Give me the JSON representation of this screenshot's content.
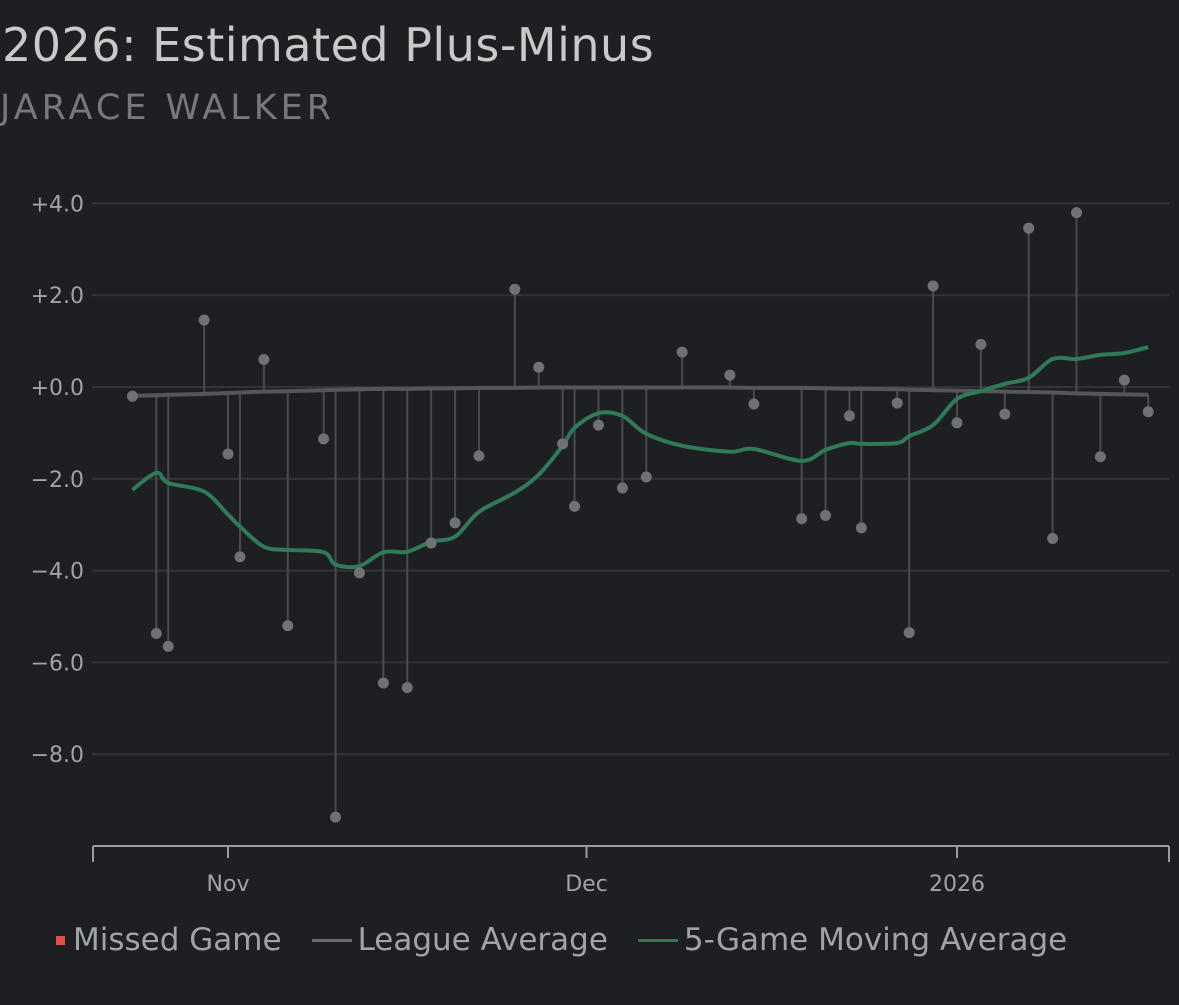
{
  "title": "2026: Estimated Plus-Minus",
  "subtitle": "JARACE WALKER",
  "colors": {
    "background": "#1e1f22",
    "points": "#707175",
    "league_average": "#55565a",
    "moving_average": "#2e7a59",
    "missed_game": "#e0514a",
    "grid": "#333438"
  },
  "legend": [
    {
      "label": "Missed Game",
      "kind": "square",
      "color": "#e0514a"
    },
    {
      "label": "League Average",
      "kind": "line",
      "color": "#6a6b6f"
    },
    {
      "label": "5-Game Moving Average",
      "kind": "line",
      "color": "#2e7a59"
    }
  ],
  "chart_data": {
    "type": "scatter",
    "title": "2026: Estimated Plus-Minus",
    "subtitle": "JARACE WALKER",
    "xlabel": "",
    "ylabel": "",
    "ylim": [
      -10,
      4.3
    ],
    "yticks": [
      4,
      2,
      0,
      -2,
      -4,
      -6,
      -8
    ],
    "ytick_labels": [
      "+4.0",
      "+2.0",
      "+0.0",
      "−2.0",
      "−4.0",
      "−6.0",
      "−8.0"
    ],
    "xticks": [
      {
        "date": "2025-11-01",
        "label": "Nov"
      },
      {
        "date": "2025-12-01",
        "label": "Dec"
      },
      {
        "date": "2026-01-01",
        "label": "2026"
      }
    ],
    "grid": true,
    "legend_position": "bottom",
    "dates": [
      "2025-10-24",
      "2025-10-26",
      "2025-10-27",
      "2025-10-30",
      "2025-11-01",
      "2025-11-02",
      "2025-11-04",
      "2025-11-06",
      "2025-11-09",
      "2025-11-10",
      "2025-11-12",
      "2025-11-14",
      "2025-11-16",
      "2025-11-18",
      "2025-11-20",
      "2025-11-22",
      "2025-11-25",
      "2025-11-27",
      "2025-11-29",
      "2025-11-30",
      "2025-12-02",
      "2025-12-04",
      "2025-12-06",
      "2025-12-09",
      "2025-12-13",
      "2025-12-15",
      "2025-12-19",
      "2025-12-21",
      "2025-12-23",
      "2025-12-24",
      "2025-12-27",
      "2025-12-28",
      "2025-12-30",
      "2026-01-01",
      "2026-01-03",
      "2026-01-05",
      "2026-01-07",
      "2026-01-09",
      "2026-01-11",
      "2026-01-13",
      "2026-01-15",
      "2026-01-17"
    ],
    "series": [
      {
        "name": "Game EPM",
        "kind": "points",
        "values": [
          -0.2,
          -5.37,
          -5.65,
          1.46,
          -1.46,
          -3.7,
          0.6,
          -5.2,
          -1.13,
          -9.37,
          -4.05,
          -6.45,
          -6.55,
          -3.4,
          -2.96,
          -1.5,
          2.13,
          0.43,
          -1.24,
          -2.6,
          -0.83,
          -2.2,
          -1.96,
          0.76,
          0.26,
          -0.37,
          -2.87,
          -2.8,
          -0.63,
          -3.07,
          -0.35,
          -5.35,
          2.2,
          -0.78,
          0.93,
          -0.59,
          3.46,
          -3.3,
          3.8,
          -1.52,
          0.15,
          -0.54
        ]
      },
      {
        "name": "League Average",
        "kind": "line",
        "values": [
          -0.19,
          -0.18,
          -0.17,
          -0.15,
          -0.13,
          -0.12,
          -0.1,
          -0.09,
          -0.07,
          -0.06,
          -0.05,
          -0.04,
          -0.04,
          -0.03,
          -0.03,
          -0.02,
          -0.02,
          -0.01,
          -0.01,
          -0.01,
          -0.01,
          -0.01,
          -0.01,
          -0.01,
          -0.01,
          -0.02,
          -0.02,
          -0.03,
          -0.04,
          -0.04,
          -0.05,
          -0.06,
          -0.07,
          -0.08,
          -0.09,
          -0.1,
          -0.11,
          -0.12,
          -0.14,
          -0.15,
          -0.16,
          -0.17
        ]
      },
      {
        "name": "5-Game Moving Average",
        "kind": "line",
        "values": [
          -2.24,
          -1.87,
          -2.09,
          -2.28,
          -2.78,
          -3.04,
          -3.48,
          -3.55,
          -3.6,
          -3.87,
          -3.9,
          -3.6,
          -3.59,
          -3.37,
          -3.26,
          -2.72,
          -2.3,
          -1.91,
          -1.28,
          -0.89,
          -0.57,
          -0.63,
          -1.02,
          -1.28,
          -1.41,
          -1.35,
          -1.61,
          -1.37,
          -1.22,
          -1.24,
          -1.22,
          -1.07,
          -0.83,
          -0.26,
          -0.09,
          0.07,
          0.2,
          0.61,
          0.61,
          0.7,
          0.74,
          0.87
        ]
      }
    ]
  }
}
